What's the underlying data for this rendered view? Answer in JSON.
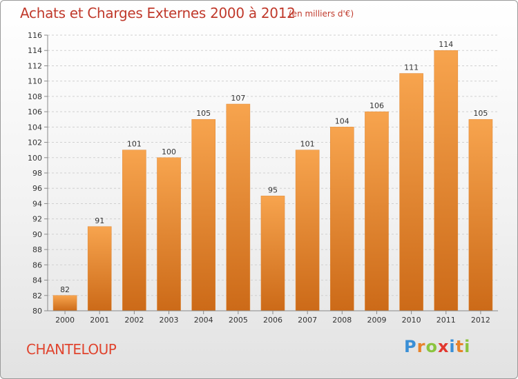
{
  "title": "Achats et Charges Externes 2000 à 2012",
  "unit_note": "(en milliers d'€)",
  "commune": "CHANTELOUP",
  "logo": {
    "text": "Proxiti",
    "letters": [
      "P",
      "r",
      "o",
      "x",
      "i",
      "t",
      "i"
    ],
    "colors": [
      "#3a8fd6",
      "#e8822a",
      "#8bc43f",
      "#e2372e",
      "#3a8fd6",
      "#e8822a",
      "#8bc43f"
    ]
  },
  "colors": {
    "bar_top": "#f7a44e",
    "bar_bottom": "#cc6a18",
    "title": "#c0392b"
  },
  "chart_data": {
    "type": "bar",
    "categories": [
      "2000",
      "2001",
      "2002",
      "2003",
      "2004",
      "2005",
      "2006",
      "2007",
      "2008",
      "2009",
      "2010",
      "2011",
      "2012"
    ],
    "values": [
      82,
      91,
      101,
      100,
      105,
      107,
      95,
      101,
      104,
      106,
      111,
      114,
      105
    ],
    "ylim": [
      80,
      116
    ],
    "yticks": [
      80,
      82,
      84,
      86,
      88,
      90,
      92,
      94,
      96,
      98,
      100,
      102,
      104,
      106,
      108,
      110,
      112,
      114,
      116
    ],
    "grid": true
  }
}
